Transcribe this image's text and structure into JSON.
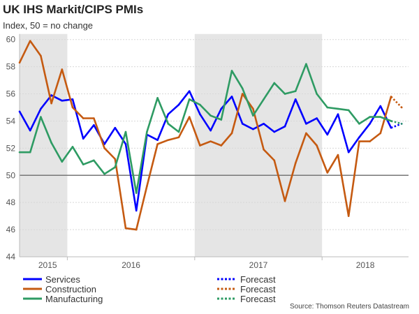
{
  "chart_data": {
    "type": "line",
    "title": "UK IHS Markit/CIPS PMIs",
    "subtitle": "Index, 50 = no change",
    "xlabel": "",
    "ylabel": "",
    "ylim": [
      44,
      60
    ],
    "yticks": [
      44,
      46,
      48,
      50,
      52,
      54,
      56,
      58,
      60
    ],
    "x_tick_labels": [
      "2015",
      "2016",
      "2017",
      "2018"
    ],
    "x_frequency": "monthly",
    "shaded_years": [
      "2015",
      "2017"
    ],
    "reference_line": 50,
    "grid": true,
    "legend_placement": "bottom",
    "series": [
      {
        "name": "Services",
        "color": "#0000ff",
        "values": [
          54.7,
          53.3,
          54.9,
          55.9,
          55.5,
          55.6,
          52.7,
          53.7,
          52.3,
          53.5,
          52.3,
          47.4,
          53.0,
          52.6,
          54.5,
          55.2,
          56.2,
          54.5,
          53.3,
          54.9,
          55.8,
          53.8,
          53.4,
          53.8,
          53.2,
          53.6,
          55.6,
          53.8,
          54.2,
          53.0,
          54.5,
          51.7,
          52.8,
          53.8,
          55.1,
          53.5
        ],
        "forecast_name": "Forecast",
        "forecast": 53.8
      },
      {
        "name": "Construction",
        "color": "#c55a11",
        "values": [
          58.3,
          59.9,
          58.8,
          55.3,
          57.8,
          55.0,
          54.2,
          54.2,
          52.0,
          51.2,
          46.1,
          46.0,
          49.2,
          52.3,
          52.6,
          52.8,
          54.3,
          52.2,
          52.5,
          52.2,
          53.1,
          56.0,
          54.9,
          51.9,
          51.1,
          48.1,
          50.9,
          53.1,
          52.2,
          50.2,
          51.5,
          47.0,
          52.5,
          52.5,
          53.1,
          55.8
        ],
        "forecast_name": "Forecast",
        "forecast": 55.0
      },
      {
        "name": "Manufacturing",
        "color": "#2e9b63",
        "values": [
          51.7,
          51.7,
          54.3,
          52.4,
          51.0,
          52.1,
          50.8,
          51.1,
          50.1,
          50.6,
          53.2,
          48.7,
          53.2,
          55.7,
          53.8,
          53.2,
          55.6,
          55.2,
          54.4,
          54.1,
          57.7,
          56.4,
          54.4,
          55.6,
          56.8,
          56.0,
          56.2,
          58.2,
          56.0,
          55.0,
          54.9,
          54.8,
          53.8,
          54.3,
          54.3,
          54.0
        ],
        "forecast_name": "Forecast",
        "forecast": 53.8
      }
    ]
  },
  "source": "Source: Thomson Reuters Datastream"
}
